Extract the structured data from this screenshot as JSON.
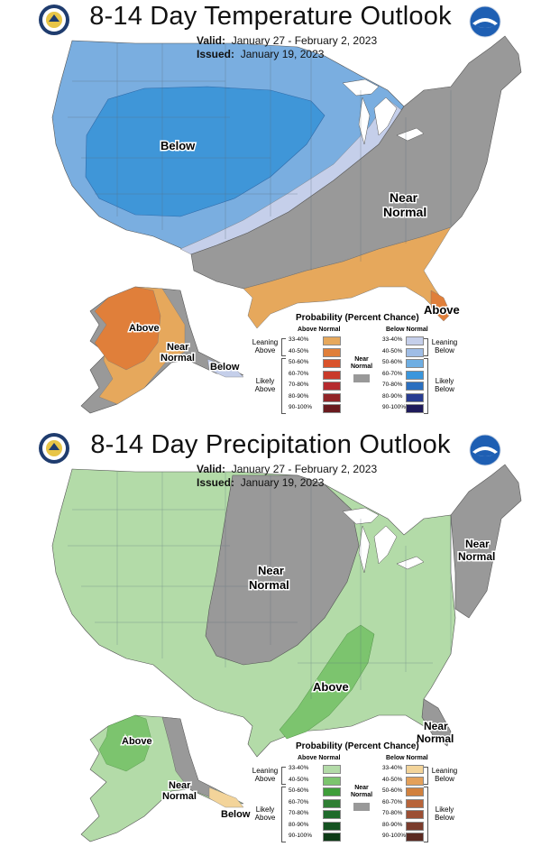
{
  "temperature": {
    "title": "8-14 Day Temperature Outlook",
    "valid_label": "Valid:",
    "valid_value": "January 27 - February 2, 2023",
    "issued_label": "Issued:",
    "issued_value": "January 19, 2023",
    "map_labels": {
      "below": "Below",
      "near_normal_1": "Near",
      "near_normal_2": "Normal",
      "above": "Above",
      "ak_above": "Above",
      "ak_near_1": "Near",
      "ak_near_2": "Normal",
      "ak_below": "Below"
    },
    "legend": {
      "title": "Probability (Percent Chance)",
      "above_head": "Above Normal",
      "below_head": "Below Normal",
      "leaning_above": "Leaning Above",
      "likely_above": "Likely Above",
      "leaning_below": "Leaning Below",
      "likely_below": "Likely Below",
      "near_normal": "Near Normal",
      "bins": [
        "33-40%",
        "40-50%",
        "50-60%",
        "60-70%",
        "70-80%",
        "80-90%",
        "90-100%"
      ],
      "above_colors": [
        "#e6a85c",
        "#e07f3a",
        "#d9522b",
        "#c93a2a",
        "#b52a2e",
        "#922528",
        "#6a1a1e"
      ],
      "below_colors": [
        "#c5cfea",
        "#9fbde6",
        "#6eaee3",
        "#3a96dc",
        "#2b6fbf",
        "#283c91",
        "#1e1a5a"
      ],
      "near_color": "#999999"
    }
  },
  "precipitation": {
    "title": "8-14 Day Precipitation Outlook",
    "valid_label": "Valid:",
    "valid_value": "January 27 - February 2, 2023",
    "issued_label": "Issued:",
    "issued_value": "January 19, 2023",
    "map_labels": {
      "near_normal_c1": "Near",
      "near_normal_c2": "Normal",
      "near_normal_ne1": "Near",
      "near_normal_ne2": "Normal",
      "above": "Above",
      "near_normal_fl1": "Near",
      "near_normal_fl2": "Normal",
      "ak_above": "Above",
      "ak_near_1": "Near",
      "ak_near_2": "Normal",
      "ak_below": "Below"
    },
    "legend": {
      "title": "Probability (Percent Chance)",
      "above_head": "Above Normal",
      "below_head": "Below Normal",
      "leaning_above": "Leaning Above",
      "likely_above": "Likely Above",
      "leaning_below": "Leaning Below",
      "likely_below": "Likely Below",
      "near_normal": "Near Normal",
      "bins": [
        "33-40%",
        "40-50%",
        "50-60%",
        "60-70%",
        "70-80%",
        "80-90%",
        "90-100%"
      ],
      "above_colors": [
        "#b3dba8",
        "#7cc46e",
        "#3f9e3a",
        "#2f7f33",
        "#1f6b2b",
        "#145221",
        "#0d3a16"
      ],
      "below_colors": [
        "#f3d49a",
        "#e3a05a",
        "#d1813e",
        "#b8643a",
        "#9c4f34",
        "#7a3c2c",
        "#5a2a22"
      ],
      "near_color": "#999999"
    }
  }
}
